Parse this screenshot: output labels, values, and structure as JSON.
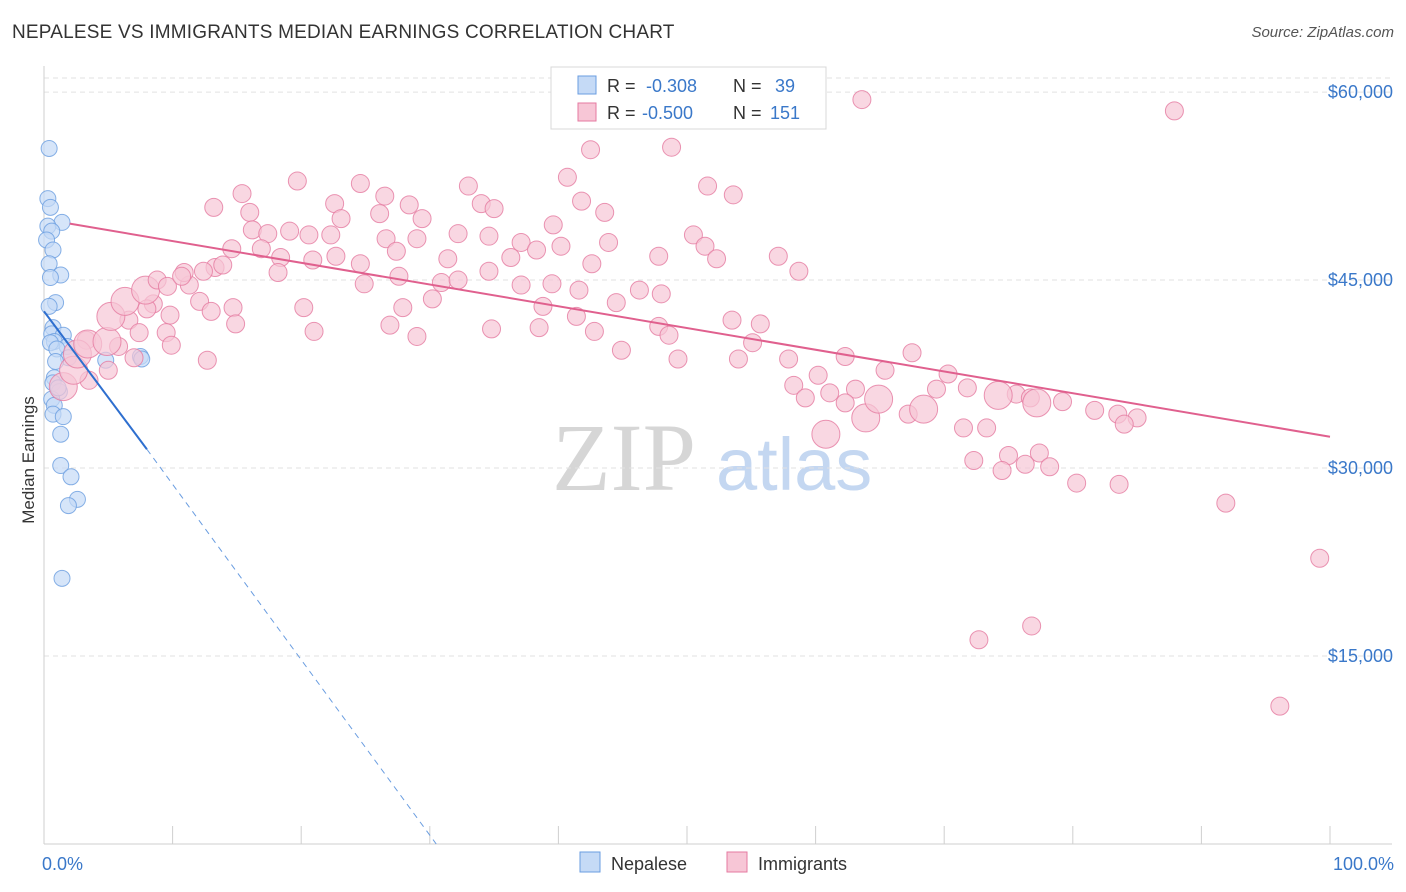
{
  "title": "NEPALESE VS IMMIGRANTS MEDIAN EARNINGS CORRELATION CHART",
  "source": "Source: ZipAtlas.com",
  "colors": {
    "nepalese": "#6a9de0",
    "nepalese_fill": "#c5daf6",
    "immigrants": "#e57aa0",
    "immigrants_fill": "#f7c6d6",
    "axis_text": "#3a78c9"
  },
  "watermark": {
    "zip": "ZIP",
    "atlas": "atlas"
  },
  "legend_top": [
    {
      "r_label": "R =",
      "r_value": "-0.308",
      "n_label": "N =",
      "n_value": "39"
    },
    {
      "r_label": "R =",
      "r_value": "-0.500",
      "n_label": "N =",
      "n_value": "151"
    }
  ],
  "chart_data": {
    "type": "scatter",
    "title": "NEPALESE VS IMMIGRANTS MEDIAN EARNINGS CORRELATION CHART",
    "ylabel": "Median Earnings",
    "xlabel": "",
    "xlim": [
      0,
      100
    ],
    "ylim": [
      0,
      62000
    ],
    "x_tick_labels": [
      "0.0%",
      "100.0%"
    ],
    "y_ticks": [
      15000,
      30000,
      45000,
      60000
    ],
    "y_tick_labels": [
      "$15,000",
      "$30,000",
      "$45,000",
      "$60,000"
    ],
    "grid": true,
    "legend": [
      "Nepalese",
      "Immigrants"
    ],
    "series": [
      {
        "name": "Nepalese",
        "trend": {
          "x": [
            0.0,
            8.0
          ],
          "y": [
            42500,
            31500
          ],
          "dashed_to": [
            30.5,
            0
          ]
        },
        "points": [
          [
            0.4,
            55500,
            1
          ],
          [
            0.3,
            51500,
            1
          ],
          [
            0.5,
            50800,
            1
          ],
          [
            1.4,
            49600,
            1
          ],
          [
            0.3,
            49300,
            1
          ],
          [
            0.6,
            48900,
            1
          ],
          [
            0.2,
            48200,
            1
          ],
          [
            0.7,
            47400,
            1
          ],
          [
            0.4,
            46300,
            1
          ],
          [
            1.3,
            45400,
            1
          ],
          [
            0.5,
            45200,
            1
          ],
          [
            0.9,
            43200,
            1
          ],
          [
            0.4,
            42900,
            1
          ],
          [
            0.7,
            41200,
            1
          ],
          [
            0.6,
            40700,
            1
          ],
          [
            1.5,
            40600,
            1
          ],
          [
            0.8,
            40100,
            1
          ],
          [
            0.5,
            40000,
            1
          ],
          [
            1.8,
            39700,
            1
          ],
          [
            1.0,
            39500,
            1
          ],
          [
            7.5,
            38900,
            1
          ],
          [
            1.9,
            38800,
            1
          ],
          [
            7.6,
            38700,
            1
          ],
          [
            4.8,
            38600,
            1
          ],
          [
            0.9,
            38500,
            1
          ],
          [
            0.8,
            37200,
            1
          ],
          [
            0.7,
            36800,
            1
          ],
          [
            1.2,
            36100,
            1
          ],
          [
            0.6,
            35500,
            1
          ],
          [
            0.8,
            35000,
            1
          ],
          [
            0.7,
            34300,
            1
          ],
          [
            1.5,
            34100,
            1
          ],
          [
            1.3,
            32700,
            1
          ],
          [
            1.3,
            30200,
            1
          ],
          [
            2.1,
            29300,
            1
          ],
          [
            2.6,
            27500,
            1
          ],
          [
            1.9,
            27000,
            1
          ],
          [
            1.4,
            21200,
            1
          ],
          [
            1.1,
            36400,
            1
          ]
        ]
      },
      {
        "name": "Immigrants",
        "trend": {
          "x": [
            2.0,
            100.0
          ],
          "y": [
            49500,
            32500
          ]
        },
        "points": [
          [
            63.6,
            59400,
            1
          ],
          [
            87.9,
            58500,
            1
          ],
          [
            48.8,
            55600,
            1
          ],
          [
            42.5,
            55400,
            1
          ],
          [
            19.7,
            52900,
            1
          ],
          [
            24.6,
            52700,
            1
          ],
          [
            40.7,
            53200,
            1
          ],
          [
            33.0,
            52500,
            1
          ],
          [
            51.6,
            52500,
            1
          ],
          [
            53.6,
            51800,
            1
          ],
          [
            15.4,
            51900,
            1
          ],
          [
            22.6,
            51100,
            1
          ],
          [
            26.5,
            51700,
            1
          ],
          [
            28.4,
            51000,
            1
          ],
          [
            34.0,
            51100,
            1
          ],
          [
            41.8,
            51300,
            1
          ],
          [
            35.0,
            50700,
            1
          ],
          [
            13.2,
            50800,
            1
          ],
          [
            16.0,
            50400,
            1
          ],
          [
            23.1,
            49900,
            1
          ],
          [
            26.1,
            50300,
            1
          ],
          [
            29.4,
            49900,
            1
          ],
          [
            43.6,
            50400,
            1
          ],
          [
            39.6,
            49400,
            1
          ],
          [
            16.2,
            49000,
            1
          ],
          [
            17.4,
            48700,
            1
          ],
          [
            19.1,
            48900,
            1
          ],
          [
            20.6,
            48600,
            1
          ],
          [
            22.3,
            48600,
            1
          ],
          [
            26.6,
            48300,
            1
          ],
          [
            29.0,
            48300,
            1
          ],
          [
            32.2,
            48700,
            1
          ],
          [
            34.6,
            48500,
            1
          ],
          [
            37.1,
            48000,
            1
          ],
          [
            38.3,
            47400,
            1
          ],
          [
            40.2,
            47700,
            1
          ],
          [
            43.9,
            48000,
            1
          ],
          [
            50.5,
            48600,
            1
          ],
          [
            51.4,
            47700,
            1
          ],
          [
            16.9,
            47500,
            1
          ],
          [
            18.4,
            46800,
            1
          ],
          [
            20.9,
            46600,
            1
          ],
          [
            22.7,
            46900,
            1
          ],
          [
            24.6,
            46300,
            1
          ],
          [
            27.4,
            47300,
            1
          ],
          [
            31.4,
            46700,
            1
          ],
          [
            36.3,
            46800,
            1
          ],
          [
            42.6,
            46300,
            1
          ],
          [
            47.8,
            46900,
            1
          ],
          [
            52.3,
            46700,
            1
          ],
          [
            57.1,
            46900,
            1
          ],
          [
            58.7,
            45700,
            1
          ],
          [
            11.3,
            44600,
            1
          ],
          [
            12.1,
            43300,
            1
          ],
          [
            8.5,
            43100,
            1
          ],
          [
            10.9,
            45600,
            1
          ],
          [
            13.3,
            46000,
            1
          ],
          [
            18.2,
            45600,
            1
          ],
          [
            24.9,
            44700,
            1
          ],
          [
            27.6,
            45300,
            1
          ],
          [
            30.9,
            44800,
            1
          ],
          [
            32.2,
            45000,
            1
          ],
          [
            34.6,
            45700,
            1
          ],
          [
            37.1,
            44600,
            1
          ],
          [
            39.5,
            44700,
            1
          ],
          [
            41.6,
            44200,
            1
          ],
          [
            46.3,
            44200,
            1
          ],
          [
            8.0,
            42700,
            1
          ],
          [
            9.8,
            42200,
            1
          ],
          [
            13.0,
            42500,
            1
          ],
          [
            14.7,
            42800,
            1
          ],
          [
            20.2,
            42800,
            1
          ],
          [
            27.9,
            42800,
            1
          ],
          [
            30.2,
            43500,
            1
          ],
          [
            38.8,
            42900,
            1
          ],
          [
            41.4,
            42100,
            1
          ],
          [
            44.5,
            43200,
            1
          ],
          [
            48.0,
            43900,
            1
          ],
          [
            53.5,
            41800,
            1
          ],
          [
            55.7,
            41500,
            1
          ],
          [
            6.6,
            41800,
            1
          ],
          [
            7.4,
            40800,
            1
          ],
          [
            9.5,
            40800,
            1
          ],
          [
            14.9,
            41500,
            1
          ],
          [
            21.0,
            40900,
            1
          ],
          [
            26.9,
            41400,
            1
          ],
          [
            29.0,
            40500,
            1
          ],
          [
            34.8,
            41100,
            1
          ],
          [
            38.5,
            41200,
            1
          ],
          [
            42.8,
            40900,
            1
          ],
          [
            47.8,
            41300,
            1
          ],
          [
            48.6,
            40600,
            1
          ],
          [
            55.1,
            40000,
            1
          ],
          [
            3.3,
            40200,
            1
          ],
          [
            5.8,
            39700,
            1
          ],
          [
            7.0,
            38800,
            1
          ],
          [
            9.9,
            39800,
            1
          ],
          [
            12.7,
            38600,
            1
          ],
          [
            44.9,
            39400,
            1
          ],
          [
            49.3,
            38700,
            1
          ],
          [
            54.0,
            38700,
            1
          ],
          [
            57.9,
            38700,
            1
          ],
          [
            62.3,
            38900,
            1
          ],
          [
            65.4,
            37800,
            1
          ],
          [
            5.0,
            37800,
            1
          ],
          [
            3.5,
            37000,
            1
          ],
          [
            60.2,
            37400,
            1
          ],
          [
            63.1,
            36300,
            1
          ],
          [
            61.1,
            36000,
            1
          ],
          [
            58.3,
            36600,
            1
          ],
          [
            70.3,
            37500,
            1
          ],
          [
            69.4,
            36300,
            1
          ],
          [
            71.8,
            36400,
            1
          ],
          [
            75.6,
            35900,
            1
          ],
          [
            76.7,
            35600,
            1
          ],
          [
            79.2,
            35300,
            1
          ],
          [
            81.7,
            34600,
            1
          ],
          [
            83.5,
            34300,
            1
          ],
          [
            85.0,
            34000,
            1
          ],
          [
            84.0,
            33500,
            1
          ],
          [
            59.2,
            35600,
            1
          ],
          [
            62.3,
            35200,
            1
          ],
          [
            67.2,
            34300,
            1
          ],
          [
            73.3,
            33200,
            1
          ],
          [
            74.2,
            35800,
            1
          ],
          [
            77.2,
            35200,
            1
          ],
          [
            60.8,
            32700,
            1
          ],
          [
            63.9,
            34000,
            1
          ],
          [
            64.9,
            35500,
            1
          ],
          [
            68.4,
            34700,
            1
          ],
          [
            1.5,
            36500,
            1
          ],
          [
            2.3,
            37800,
            1
          ],
          [
            2.6,
            39100,
            1
          ],
          [
            3.4,
            39900,
            1
          ],
          [
            4.9,
            40100,
            1
          ],
          [
            5.2,
            42100,
            1
          ],
          [
            6.3,
            43300,
            1
          ],
          [
            7.9,
            44200,
            1
          ],
          [
            8.8,
            45000,
            1
          ],
          [
            9.6,
            44500,
            1
          ],
          [
            10.7,
            45300,
            1
          ],
          [
            12.4,
            45700,
            1
          ],
          [
            13.9,
            46200,
            1
          ],
          [
            14.6,
            47500,
            1
          ],
          [
            67.5,
            39200,
            1
          ],
          [
            71.5,
            33200,
            1
          ],
          [
            72.3,
            30600,
            1
          ],
          [
            75.0,
            31000,
            1
          ],
          [
            76.3,
            30300,
            1
          ],
          [
            77.4,
            31200,
            1
          ],
          [
            78.2,
            30100,
            1
          ],
          [
            74.5,
            29800,
            1
          ],
          [
            80.3,
            28800,
            1
          ],
          [
            83.6,
            28700,
            1
          ],
          [
            91.9,
            27200,
            1
          ],
          [
            99.2,
            22800,
            1
          ],
          [
            72.7,
            16300,
            1
          ],
          [
            76.8,
            17400,
            1
          ],
          [
            96.1,
            11000,
            1
          ]
        ]
      }
    ]
  }
}
